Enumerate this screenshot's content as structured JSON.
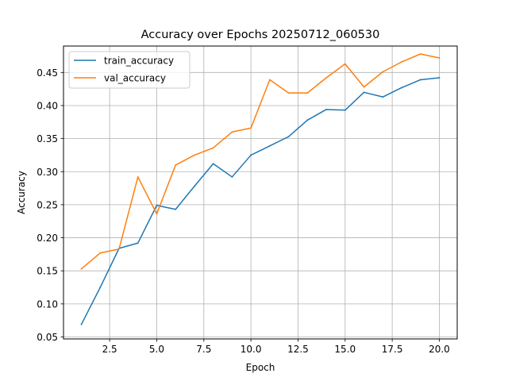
{
  "chart_data": {
    "type": "line",
    "title": "Accuracy over Epochs 20250712_060530",
    "xlabel": "Epoch",
    "ylabel": "Accuracy",
    "xlim": [
      0.05,
      20.95
    ],
    "ylim": [
      0.047,
      0.49
    ],
    "grid": true,
    "legend_position": "top-left",
    "x_ticks": [
      2.5,
      5.0,
      7.5,
      10.0,
      12.5,
      15.0,
      17.5,
      20.0
    ],
    "x_tick_labels": [
      "2.5",
      "5.0",
      "7.5",
      "10.0",
      "12.5",
      "15.0",
      "17.5",
      "20.0"
    ],
    "y_ticks": [
      0.05,
      0.1,
      0.15,
      0.2,
      0.25,
      0.3,
      0.35,
      0.4,
      0.45
    ],
    "y_tick_labels": [
      "0.05",
      "0.10",
      "0.15",
      "0.20",
      "0.25",
      "0.30",
      "0.35",
      "0.40",
      "0.45"
    ],
    "x": [
      1,
      2,
      3,
      4,
      5,
      6,
      7,
      8,
      9,
      10,
      11,
      12,
      13,
      14,
      15,
      16,
      17,
      18,
      19,
      20
    ],
    "series": [
      {
        "name": "train_accuracy",
        "color": "#1f77b4",
        "values": [
          0.069,
          0.125,
          0.184,
          0.192,
          0.249,
          0.243,
          0.278,
          0.312,
          0.292,
          0.325,
          0.339,
          0.353,
          0.378,
          0.394,
          0.393,
          0.42,
          0.413,
          0.427,
          0.439,
          0.442
        ]
      },
      {
        "name": "val_accuracy",
        "color": "#ff7f0e",
        "values": [
          0.153,
          0.177,
          0.183,
          0.292,
          0.236,
          0.31,
          0.325,
          0.336,
          0.36,
          0.366,
          0.439,
          0.419,
          0.419,
          0.442,
          0.463,
          0.428,
          0.451,
          0.466,
          0.478,
          0.472
        ]
      }
    ]
  }
}
